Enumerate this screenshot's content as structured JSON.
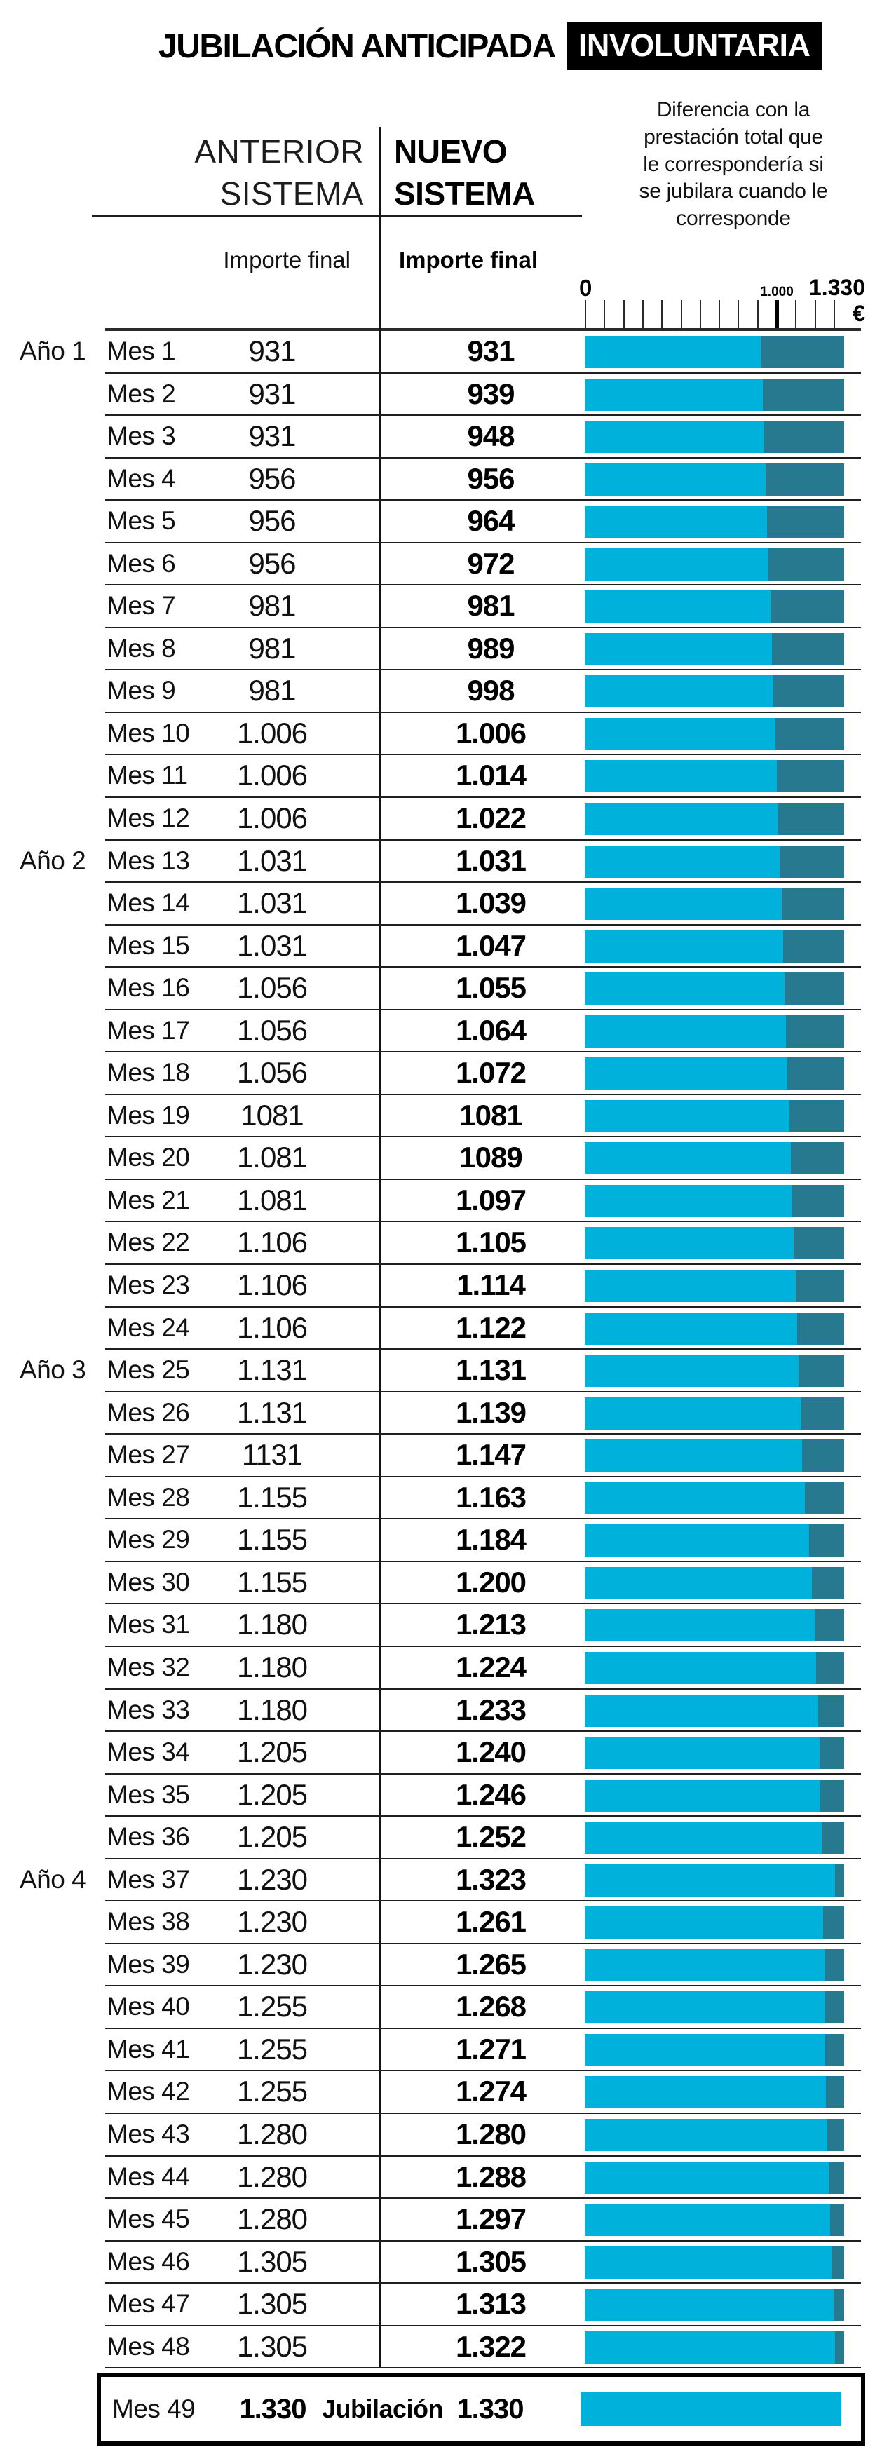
{
  "title": {
    "main": "JUBILACIÓN ANTICIPADA",
    "badge": "INVOLUNTARIA"
  },
  "columns": {
    "anterior": {
      "line1": "ANTERIOR",
      "line2": "SISTEMA",
      "subtitle": "Importe final"
    },
    "nuevo": {
      "line1": "NUEVO",
      "line2": "SISTEMA",
      "subtitle": "Importe final"
    },
    "diff_lines": [
      "Diferencia con la",
      "prestación total que",
      "le correspondería si",
      "se jubilara cuando le",
      "corresponde"
    ]
  },
  "axis": {
    "min_label": "0",
    "mid_label": "1.000",
    "max_label": "1.330 €",
    "min": 0,
    "mid": 1000,
    "max": 1330,
    "tick_count": 14,
    "bold_tick_index": 10
  },
  "colors": {
    "bar_light": "#00b1dc",
    "bar_dark": "#26798e",
    "badge_bg": "#000000",
    "badge_fg": "#ffffff"
  },
  "rows": [
    {
      "year": "Año 1",
      "mes": "Mes 1",
      "anterior": "931",
      "nuevo": "931",
      "valor": 931
    },
    {
      "year": null,
      "mes": "Mes 2",
      "anterior": "931",
      "nuevo": "939",
      "valor": 939
    },
    {
      "year": null,
      "mes": "Mes 3",
      "anterior": "931",
      "nuevo": "948",
      "valor": 948
    },
    {
      "year": null,
      "mes": "Mes 4",
      "anterior": "956",
      "nuevo": "956",
      "valor": 956
    },
    {
      "year": null,
      "mes": "Mes 5",
      "anterior": "956",
      "nuevo": "964",
      "valor": 964
    },
    {
      "year": null,
      "mes": "Mes 6",
      "anterior": "956",
      "nuevo": "972",
      "valor": 972
    },
    {
      "year": null,
      "mes": "Mes 7",
      "anterior": "981",
      "nuevo": "981",
      "valor": 981
    },
    {
      "year": null,
      "mes": "Mes 8",
      "anterior": "981",
      "nuevo": "989",
      "valor": 989
    },
    {
      "year": null,
      "mes": "Mes 9",
      "anterior": "981",
      "nuevo": "998",
      "valor": 998
    },
    {
      "year": null,
      "mes": "Mes 10",
      "anterior": "1.006",
      "nuevo": "1.006",
      "valor": 1006
    },
    {
      "year": null,
      "mes": "Mes 11",
      "anterior": "1.006",
      "nuevo": "1.014",
      "valor": 1014
    },
    {
      "year": null,
      "mes": "Mes 12",
      "anterior": "1.006",
      "nuevo": "1.022",
      "valor": 1022
    },
    {
      "year": "Año 2",
      "mes": "Mes 13",
      "anterior": "1.031",
      "nuevo": "1.031",
      "valor": 1031
    },
    {
      "year": null,
      "mes": "Mes 14",
      "anterior": "1.031",
      "nuevo": "1.039",
      "valor": 1039
    },
    {
      "year": null,
      "mes": "Mes 15",
      "anterior": "1.031",
      "nuevo": "1.047",
      "valor": 1047
    },
    {
      "year": null,
      "mes": "Mes 16",
      "anterior": "1.056",
      "nuevo": "1.055",
      "valor": 1055
    },
    {
      "year": null,
      "mes": "Mes 17",
      "anterior": "1.056",
      "nuevo": "1.064",
      "valor": 1064
    },
    {
      "year": null,
      "mes": "Mes 18",
      "anterior": "1.056",
      "nuevo": "1.072",
      "valor": 1072
    },
    {
      "year": null,
      "mes": "Mes 19",
      "anterior": "1081",
      "nuevo": "1081",
      "valor": 1081
    },
    {
      "year": null,
      "mes": "Mes 20",
      "anterior": "1.081",
      "nuevo": "1089",
      "valor": 1089
    },
    {
      "year": null,
      "mes": "Mes 21",
      "anterior": "1.081",
      "nuevo": "1.097",
      "valor": 1097
    },
    {
      "year": null,
      "mes": "Mes 22",
      "anterior": "1.106",
      "nuevo": "1.105",
      "valor": 1105
    },
    {
      "year": null,
      "mes": "Mes 23",
      "anterior": "1.106",
      "nuevo": "1.114",
      "valor": 1114
    },
    {
      "year": null,
      "mes": "Mes 24",
      "anterior": "1.106",
      "nuevo": "1.122",
      "valor": 1122
    },
    {
      "year": "Año 3",
      "mes": "Mes 25",
      "anterior": "1.131",
      "nuevo": "1.131",
      "valor": 1131
    },
    {
      "year": null,
      "mes": "Mes 26",
      "anterior": "1.131",
      "nuevo": "1.139",
      "valor": 1139
    },
    {
      "year": null,
      "mes": "Mes 27",
      "anterior": "1131",
      "nuevo": "1.147",
      "valor": 1147
    },
    {
      "year": null,
      "mes": "Mes 28",
      "anterior": "1.155",
      "nuevo": "1.163",
      "valor": 1163
    },
    {
      "year": null,
      "mes": "Mes 29",
      "anterior": "1.155",
      "nuevo": "1.184",
      "valor": 1184
    },
    {
      "year": null,
      "mes": "Mes 30",
      "anterior": "1.155",
      "nuevo": "1.200",
      "valor": 1200
    },
    {
      "year": null,
      "mes": "Mes 31",
      "anterior": "1.180",
      "nuevo": "1.213",
      "valor": 1213
    },
    {
      "year": null,
      "mes": "Mes 32",
      "anterior": "1.180",
      "nuevo": "1.224",
      "valor": 1224
    },
    {
      "year": null,
      "mes": "Mes 33",
      "anterior": "1.180",
      "nuevo": "1.233",
      "valor": 1233
    },
    {
      "year": null,
      "mes": "Mes 34",
      "anterior": "1.205",
      "nuevo": "1.240",
      "valor": 1240
    },
    {
      "year": null,
      "mes": "Mes 35",
      "anterior": "1.205",
      "nuevo": "1.246",
      "valor": 1246
    },
    {
      "year": null,
      "mes": "Mes 36",
      "anterior": "1.205",
      "nuevo": "1.252",
      "valor": 1252
    },
    {
      "year": "Año 4",
      "mes": "Mes 37",
      "anterior": "1.230",
      "nuevo": "1.323",
      "valor": 1323
    },
    {
      "year": null,
      "mes": "Mes 38",
      "anterior": "1.230",
      "nuevo": "1.261",
      "valor": 1261
    },
    {
      "year": null,
      "mes": "Mes 39",
      "anterior": "1.230",
      "nuevo": "1.265",
      "valor": 1265
    },
    {
      "year": null,
      "mes": "Mes 40",
      "anterior": "1.255",
      "nuevo": "1.268",
      "valor": 1268
    },
    {
      "year": null,
      "mes": "Mes 41",
      "anterior": "1.255",
      "nuevo": "1.271",
      "valor": 1271
    },
    {
      "year": null,
      "mes": "Mes 42",
      "anterior": "1.255",
      "nuevo": "1.274",
      "valor": 1274
    },
    {
      "year": null,
      "mes": "Mes 43",
      "anterior": "1.280",
      "nuevo": "1.280",
      "valor": 1280
    },
    {
      "year": null,
      "mes": "Mes 44",
      "anterior": "1.280",
      "nuevo": "1.288",
      "valor": 1288
    },
    {
      "year": null,
      "mes": "Mes 45",
      "anterior": "1.280",
      "nuevo": "1.297",
      "valor": 1297
    },
    {
      "year": null,
      "mes": "Mes 46",
      "anterior": "1.305",
      "nuevo": "1.305",
      "valor": 1305
    },
    {
      "year": null,
      "mes": "Mes 47",
      "anterior": "1.305",
      "nuevo": "1.313",
      "valor": 1313
    },
    {
      "year": null,
      "mes": "Mes 48",
      "anterior": "1.305",
      "nuevo": "1.322",
      "valor": 1322
    }
  ],
  "final_row": {
    "mes": "Mes 49",
    "anterior": "1.330",
    "label": "Jubilación",
    "nuevo": "1.330",
    "valor": 1330
  },
  "chart_data": {
    "type": "bar",
    "orientation": "horizontal",
    "title": "JUBILACIÓN ANTICIPADA INVOLUNTARIA",
    "categories": [
      "Mes 1",
      "Mes 2",
      "Mes 3",
      "Mes 4",
      "Mes 5",
      "Mes 6",
      "Mes 7",
      "Mes 8",
      "Mes 9",
      "Mes 10",
      "Mes 11",
      "Mes 12",
      "Mes 13",
      "Mes 14",
      "Mes 15",
      "Mes 16",
      "Mes 17",
      "Mes 18",
      "Mes 19",
      "Mes 20",
      "Mes 21",
      "Mes 22",
      "Mes 23",
      "Mes 24",
      "Mes 25",
      "Mes 26",
      "Mes 27",
      "Mes 28",
      "Mes 29",
      "Mes 30",
      "Mes 31",
      "Mes 32",
      "Mes 33",
      "Mes 34",
      "Mes 35",
      "Mes 36",
      "Mes 37",
      "Mes 38",
      "Mes 39",
      "Mes 40",
      "Mes 41",
      "Mes 42",
      "Mes 43",
      "Mes 44",
      "Mes 45",
      "Mes 46",
      "Mes 47",
      "Mes 48",
      "Mes 49"
    ],
    "year_groups": {
      "Año 1": "Mes 1",
      "Año 2": "Mes 13",
      "Año 3": "Mes 25",
      "Año 4": "Mes 37"
    },
    "series": [
      {
        "name": "Anterior sistema — Importe final",
        "values": [
          931,
          931,
          931,
          956,
          956,
          956,
          981,
          981,
          981,
          1006,
          1006,
          1006,
          1031,
          1031,
          1031,
          1056,
          1056,
          1056,
          1081,
          1081,
          1081,
          1106,
          1106,
          1106,
          1131,
          1131,
          1131,
          1155,
          1155,
          1155,
          1180,
          1180,
          1180,
          1205,
          1205,
          1205,
          1230,
          1230,
          1230,
          1255,
          1255,
          1255,
          1280,
          1280,
          1280,
          1305,
          1305,
          1305,
          1330
        ]
      },
      {
        "name": "Nuevo sistema — Importe final (barra azul clara)",
        "values": [
          931,
          939,
          948,
          956,
          964,
          972,
          981,
          989,
          998,
          1006,
          1014,
          1022,
          1031,
          1039,
          1047,
          1055,
          1064,
          1072,
          1081,
          1089,
          1097,
          1105,
          1114,
          1122,
          1131,
          1139,
          1147,
          1163,
          1184,
          1200,
          1213,
          1224,
          1233,
          1240,
          1246,
          1252,
          1323,
          1261,
          1265,
          1268,
          1271,
          1274,
          1280,
          1288,
          1297,
          1305,
          1313,
          1322,
          1330
        ]
      }
    ],
    "bar_segment_note": "Segmento oscuro = diferencia con la prestación total (1.330 €) que le correspondería si se jubilara cuando le corresponde",
    "xlabel": "€",
    "ylabel": "Mes",
    "xlim": [
      0,
      1330
    ],
    "x_ticks_labeled": [
      0,
      1000,
      1330
    ],
    "grid": false,
    "legend_position": "none",
    "annotations": [
      "Jubilación en Mes 49 (fila destacada con recuadro negro)"
    ]
  }
}
